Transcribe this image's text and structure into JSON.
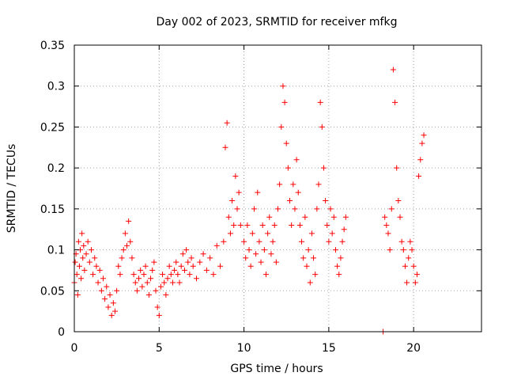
{
  "chart_data": {
    "type": "scatter",
    "title": "Day 002 of 2023, SRMTID for receiver mfkg",
    "xlabel": "GPS time / hours",
    "ylabel": "SRMTID / TECUs",
    "xlim": [
      0,
      24
    ],
    "ylim": [
      0,
      0.35
    ],
    "xticks": [
      0,
      5,
      10,
      15,
      20
    ],
    "yticks": [
      0,
      0.05,
      0.1,
      0.15,
      0.2,
      0.25,
      0.3,
      0.35
    ],
    "xtick_labels": [
      "0",
      "5",
      "10",
      "15",
      "20"
    ],
    "ytick_labels": [
      "0",
      "0.05",
      "0.1",
      "0.15",
      "0.2",
      "0.25",
      "0.3",
      "0.35"
    ],
    "grid": true,
    "marker": "+",
    "marker_color": "#ff0000",
    "series": [
      {
        "name": "SRMTID",
        "points": [
          [
            0.0,
            0.06
          ],
          [
            0.05,
            0.085
          ],
          [
            0.1,
            0.095
          ],
          [
            0.15,
            0.07
          ],
          [
            0.2,
            0.045
          ],
          [
            0.25,
            0.11
          ],
          [
            0.3,
            0.08
          ],
          [
            0.35,
            0.1
          ],
          [
            0.4,
            0.065
          ],
          [
            0.45,
            0.12
          ],
          [
            0.5,
            0.09
          ],
          [
            0.55,
            0.105
          ],
          [
            0.6,
            0.075
          ],
          [
            0.7,
            0.095
          ],
          [
            0.8,
            0.11
          ],
          [
            0.9,
            0.085
          ],
          [
            1.0,
            0.1
          ],
          [
            1.1,
            0.07
          ],
          [
            1.2,
            0.09
          ],
          [
            1.3,
            0.08
          ],
          [
            1.4,
            0.06
          ],
          [
            1.5,
            0.075
          ],
          [
            1.6,
            0.05
          ],
          [
            1.7,
            0.065
          ],
          [
            1.8,
            0.04
          ],
          [
            1.9,
            0.055
          ],
          [
            2.0,
            0.03
          ],
          [
            2.1,
            0.045
          ],
          [
            2.2,
            0.02
          ],
          [
            2.3,
            0.035
          ],
          [
            2.4,
            0.025
          ],
          [
            2.5,
            0.05
          ],
          [
            2.6,
            0.08
          ],
          [
            2.7,
            0.07
          ],
          [
            2.8,
            0.09
          ],
          [
            2.9,
            0.1
          ],
          [
            3.0,
            0.12
          ],
          [
            3.1,
            0.105
          ],
          [
            3.2,
            0.135
          ],
          [
            3.3,
            0.11
          ],
          [
            3.4,
            0.09
          ],
          [
            3.5,
            0.07
          ],
          [
            3.6,
            0.06
          ],
          [
            3.7,
            0.05
          ],
          [
            3.8,
            0.065
          ],
          [
            3.9,
            0.075
          ],
          [
            4.0,
            0.055
          ],
          [
            4.1,
            0.07
          ],
          [
            4.2,
            0.08
          ],
          [
            4.3,
            0.06
          ],
          [
            4.4,
            0.045
          ],
          [
            4.5,
            0.065
          ],
          [
            4.6,
            0.075
          ],
          [
            4.7,
            0.085
          ],
          [
            4.8,
            0.05
          ],
          [
            4.9,
            0.03
          ],
          [
            5.0,
            0.02
          ],
          [
            5.1,
            0.055
          ],
          [
            5.2,
            0.07
          ],
          [
            5.3,
            0.06
          ],
          [
            5.4,
            0.045
          ],
          [
            5.5,
            0.065
          ],
          [
            5.6,
            0.08
          ],
          [
            5.7,
            0.07
          ],
          [
            5.8,
            0.06
          ],
          [
            5.9,
            0.075
          ],
          [
            6.0,
            0.085
          ],
          [
            6.1,
            0.07
          ],
          [
            6.2,
            0.06
          ],
          [
            6.3,
            0.08
          ],
          [
            6.4,
            0.095
          ],
          [
            6.5,
            0.075
          ],
          [
            6.6,
            0.1
          ],
          [
            6.7,
            0.085
          ],
          [
            6.8,
            0.07
          ],
          [
            6.9,
            0.09
          ],
          [
            7.0,
            0.08
          ],
          [
            7.2,
            0.065
          ],
          [
            7.4,
            0.085
          ],
          [
            7.6,
            0.095
          ],
          [
            7.8,
            0.075
          ],
          [
            8.0,
            0.09
          ],
          [
            8.2,
            0.07
          ],
          [
            8.4,
            0.105
          ],
          [
            8.6,
            0.08
          ],
          [
            8.8,
            0.11
          ],
          [
            8.9,
            0.225
          ],
          [
            9.0,
            0.255
          ],
          [
            9.1,
            0.14
          ],
          [
            9.2,
            0.12
          ],
          [
            9.3,
            0.16
          ],
          [
            9.4,
            0.13
          ],
          [
            9.5,
            0.19
          ],
          [
            9.6,
            0.15
          ],
          [
            9.7,
            0.17
          ],
          [
            9.8,
            0.13
          ],
          [
            10.0,
            0.11
          ],
          [
            10.1,
            0.09
          ],
          [
            10.2,
            0.13
          ],
          [
            10.3,
            0.1
          ],
          [
            10.4,
            0.08
          ],
          [
            10.5,
            0.12
          ],
          [
            10.6,
            0.15
          ],
          [
            10.7,
            0.095
          ],
          [
            10.8,
            0.17
          ],
          [
            10.9,
            0.11
          ],
          [
            11.0,
            0.085
          ],
          [
            11.1,
            0.13
          ],
          [
            11.2,
            0.1
          ],
          [
            11.3,
            0.07
          ],
          [
            11.4,
            0.12
          ],
          [
            11.5,
            0.14
          ],
          [
            11.6,
            0.095
          ],
          [
            11.7,
            0.11
          ],
          [
            11.8,
            0.13
          ],
          [
            11.9,
            0.085
          ],
          [
            12.0,
            0.15
          ],
          [
            12.1,
            0.18
          ],
          [
            12.2,
            0.25
          ],
          [
            12.3,
            0.3
          ],
          [
            12.4,
            0.28
          ],
          [
            12.5,
            0.23
          ],
          [
            12.6,
            0.2
          ],
          [
            12.7,
            0.16
          ],
          [
            12.8,
            0.13
          ],
          [
            12.9,
            0.18
          ],
          [
            13.0,
            0.15
          ],
          [
            13.1,
            0.21
          ],
          [
            13.2,
            0.17
          ],
          [
            13.3,
            0.13
          ],
          [
            13.4,
            0.11
          ],
          [
            13.5,
            0.09
          ],
          [
            13.6,
            0.14
          ],
          [
            13.7,
            0.08
          ],
          [
            13.8,
            0.1
          ],
          [
            13.9,
            0.06
          ],
          [
            14.0,
            0.12
          ],
          [
            14.1,
            0.09
          ],
          [
            14.2,
            0.07
          ],
          [
            14.3,
            0.15
          ],
          [
            14.4,
            0.18
          ],
          [
            14.5,
            0.28
          ],
          [
            14.6,
            0.25
          ],
          [
            14.7,
            0.2
          ],
          [
            14.8,
            0.16
          ],
          [
            14.9,
            0.13
          ],
          [
            15.0,
            0.11
          ],
          [
            15.1,
            0.15
          ],
          [
            15.2,
            0.12
          ],
          [
            15.3,
            0.14
          ],
          [
            15.4,
            0.1
          ],
          [
            15.5,
            0.08
          ],
          [
            15.6,
            0.07
          ],
          [
            15.7,
            0.09
          ],
          [
            15.8,
            0.11
          ],
          [
            15.9,
            0.125
          ],
          [
            16.0,
            0.14
          ],
          [
            18.2,
            0.0
          ],
          [
            18.3,
            0.14
          ],
          [
            18.4,
            0.13
          ],
          [
            18.5,
            0.12
          ],
          [
            18.6,
            0.1
          ],
          [
            18.7,
            0.15
          ],
          [
            18.8,
            0.32
          ],
          [
            18.9,
            0.28
          ],
          [
            19.0,
            0.2
          ],
          [
            19.1,
            0.16
          ],
          [
            19.2,
            0.14
          ],
          [
            19.3,
            0.11
          ],
          [
            19.4,
            0.1
          ],
          [
            19.5,
            0.08
          ],
          [
            19.6,
            0.06
          ],
          [
            19.7,
            0.09
          ],
          [
            19.8,
            0.11
          ],
          [
            19.9,
            0.1
          ],
          [
            20.0,
            0.08
          ],
          [
            20.1,
            0.06
          ],
          [
            20.2,
            0.07
          ],
          [
            20.3,
            0.19
          ],
          [
            20.4,
            0.21
          ],
          [
            20.5,
            0.23
          ],
          [
            20.6,
            0.24
          ]
        ]
      }
    ]
  }
}
